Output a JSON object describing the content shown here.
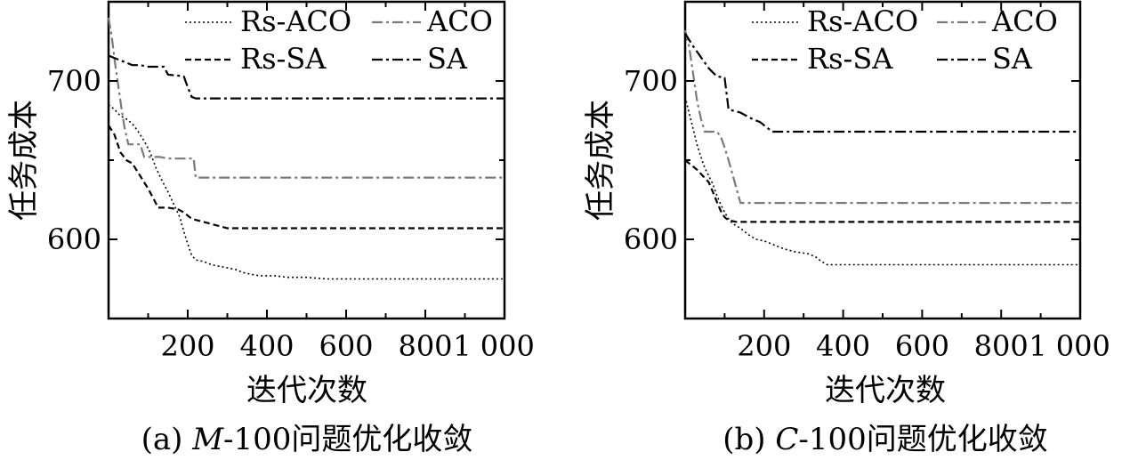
{
  "chart_data": [
    {
      "type": "line",
      "panel": "a",
      "caption_prefix": "(a) ",
      "caption_italic": "M",
      "caption_suffix": "-100问题优化收敛",
      "xlabel": "迭代次数",
      "ylabel": "任务成本",
      "xlim": [
        0,
        1000
      ],
      "ylim": [
        550,
        750
      ],
      "xticks": [
        200,
        400,
        600,
        800,
        1000
      ],
      "xtick_labels": [
        "200",
        "400",
        "600",
        "800",
        "1 000"
      ],
      "yticks": [
        600,
        700
      ],
      "ytick_labels": [
        "600",
        "700"
      ],
      "legend": {
        "placement": "top-right",
        "columns": 2
      },
      "series": [
        {
          "name": "Rs-ACO",
          "style": "dotted",
          "color": "#000000",
          "points": [
            [
              0,
              685
            ],
            [
              15,
              682
            ],
            [
              30,
              678
            ],
            [
              45,
              676
            ],
            [
              60,
              673
            ],
            [
              75,
              668
            ],
            [
              90,
              662
            ],
            [
              105,
              655
            ],
            [
              120,
              645
            ],
            [
              135,
              637
            ],
            [
              150,
              630
            ],
            [
              165,
              622
            ],
            [
              180,
              614
            ],
            [
              190,
              605
            ],
            [
              200,
              597
            ],
            [
              210,
              590
            ],
            [
              220,
              587
            ],
            [
              240,
              586
            ],
            [
              260,
              584
            ],
            [
              280,
              583
            ],
            [
              300,
              582
            ],
            [
              320,
              581
            ],
            [
              340,
              579
            ],
            [
              360,
              578
            ],
            [
              380,
              577
            ],
            [
              420,
              577
            ],
            [
              450,
              576
            ],
            [
              500,
              576
            ],
            [
              550,
              575
            ],
            [
              600,
              575
            ],
            [
              700,
              575
            ],
            [
              800,
              575
            ],
            [
              900,
              575
            ],
            [
              1000,
              575
            ]
          ]
        },
        {
          "name": "ACO",
          "style": "dashdot",
          "color": "#7a7a7a",
          "points": [
            [
              0,
              740
            ],
            [
              8,
              728
            ],
            [
              16,
              712
            ],
            [
              24,
              698
            ],
            [
              32,
              684
            ],
            [
              40,
              671
            ],
            [
              50,
              660
            ],
            [
              80,
              660
            ],
            [
              90,
              652
            ],
            [
              130,
              652
            ],
            [
              150,
              651
            ],
            [
              180,
              651
            ],
            [
              200,
              651
            ],
            [
              215,
              651
            ],
            [
              220,
              639
            ],
            [
              300,
              639
            ],
            [
              500,
              639
            ],
            [
              700,
              639
            ],
            [
              900,
              639
            ],
            [
              1000,
              639
            ]
          ]
        },
        {
          "name": "Rs-SA",
          "style": "dashed",
          "color": "#000000",
          "points": [
            [
              0,
              672
            ],
            [
              15,
              666
            ],
            [
              30,
              655
            ],
            [
              45,
              650
            ],
            [
              60,
              648
            ],
            [
              80,
              640
            ],
            [
              100,
              632
            ],
            [
              115,
              625
            ],
            [
              125,
              620
            ],
            [
              150,
              620
            ],
            [
              175,
              619
            ],
            [
              190,
              617
            ],
            [
              210,
              613
            ],
            [
              240,
              611
            ],
            [
              270,
              609
            ],
            [
              300,
              607
            ],
            [
              350,
              607
            ],
            [
              400,
              607
            ],
            [
              500,
              607
            ],
            [
              600,
              607
            ],
            [
              800,
              607
            ],
            [
              1000,
              607
            ]
          ]
        },
        {
          "name": "SA",
          "style": "dashdot",
          "color": "#000000",
          "points": [
            [
              0,
              716
            ],
            [
              20,
              714
            ],
            [
              40,
              712
            ],
            [
              60,
              710
            ],
            [
              80,
              710
            ],
            [
              100,
              709
            ],
            [
              140,
              709
            ],
            [
              150,
              704
            ],
            [
              190,
              703
            ],
            [
              200,
              696
            ],
            [
              210,
              690
            ],
            [
              220,
              689
            ],
            [
              300,
              689
            ],
            [
              500,
              689
            ],
            [
              700,
              689
            ],
            [
              900,
              689
            ],
            [
              1000,
              689
            ]
          ]
        }
      ]
    },
    {
      "type": "line",
      "panel": "b",
      "caption_prefix": "(b) ",
      "caption_italic": "C",
      "caption_suffix": "-100问题优化收敛",
      "xlabel": "迭代次数",
      "ylabel": "任务成本",
      "xlim": [
        0,
        1000
      ],
      "ylim": [
        550,
        750
      ],
      "xticks": [
        200,
        400,
        600,
        800,
        1000
      ],
      "xtick_labels": [
        "200",
        "400",
        "600",
        "800",
        "1 000"
      ],
      "yticks": [
        600,
        700
      ],
      "ytick_labels": [
        "600",
        "700"
      ],
      "legend": {
        "placement": "top-right",
        "columns": 2
      },
      "series": [
        {
          "name": "Rs-ACO",
          "style": "dotted",
          "color": "#000000",
          "points": [
            [
              0,
              690
            ],
            [
              10,
              680
            ],
            [
              20,
              670
            ],
            [
              30,
              660
            ],
            [
              40,
              652
            ],
            [
              50,
              645
            ],
            [
              60,
              640
            ],
            [
              70,
              635
            ],
            [
              80,
              628
            ],
            [
              90,
              622
            ],
            [
              100,
              617
            ],
            [
              110,
              613
            ],
            [
              120,
              610
            ],
            [
              140,
              607
            ],
            [
              160,
              603
            ],
            [
              180,
              600
            ],
            [
              200,
              599
            ],
            [
              220,
              597
            ],
            [
              250,
              594
            ],
            [
              280,
              592
            ],
            [
              310,
              591
            ],
            [
              330,
              589
            ],
            [
              345,
              586
            ],
            [
              360,
              584
            ],
            [
              400,
              584
            ],
            [
              500,
              584
            ],
            [
              600,
              584
            ],
            [
              800,
              584
            ],
            [
              1000,
              584
            ]
          ]
        },
        {
          "name": "ACO",
          "style": "dashdot",
          "color": "#7a7a7a",
          "points": [
            [
              0,
              732
            ],
            [
              10,
              722
            ],
            [
              20,
              705
            ],
            [
              30,
              688
            ],
            [
              40,
              676
            ],
            [
              50,
              668
            ],
            [
              80,
              668
            ],
            [
              90,
              665
            ],
            [
              100,
              658
            ],
            [
              110,
              650
            ],
            [
              120,
              641
            ],
            [
              130,
              632
            ],
            [
              140,
              623
            ],
            [
              200,
              623
            ],
            [
              400,
              623
            ],
            [
              600,
              623
            ],
            [
              800,
              623
            ],
            [
              1000,
              623
            ]
          ]
        },
        {
          "name": "Rs-SA",
          "style": "dashed",
          "color": "#000000",
          "points": [
            [
              0,
              650
            ],
            [
              15,
              647
            ],
            [
              30,
              644
            ],
            [
              45,
              640
            ],
            [
              60,
              636
            ],
            [
              70,
              630
            ],
            [
              80,
              624
            ],
            [
              90,
              618
            ],
            [
              100,
              614
            ],
            [
              110,
              612
            ],
            [
              130,
              611
            ],
            [
              200,
              611
            ],
            [
              400,
              611
            ],
            [
              600,
              611
            ],
            [
              800,
              611
            ],
            [
              1000,
              611
            ]
          ]
        },
        {
          "name": "SA",
          "style": "dashdot",
          "color": "#000000",
          "points": [
            [
              0,
              730
            ],
            [
              20,
              722
            ],
            [
              40,
              715
            ],
            [
              60,
              708
            ],
            [
              80,
              703
            ],
            [
              100,
              702
            ],
            [
              110,
              682
            ],
            [
              140,
              680
            ],
            [
              170,
              676
            ],
            [
              190,
              674
            ],
            [
              205,
              671
            ],
            [
              220,
              668
            ],
            [
              240,
              668
            ],
            [
              400,
              668
            ],
            [
              600,
              668
            ],
            [
              800,
              668
            ],
            [
              1000,
              668
            ]
          ]
        }
      ]
    }
  ]
}
